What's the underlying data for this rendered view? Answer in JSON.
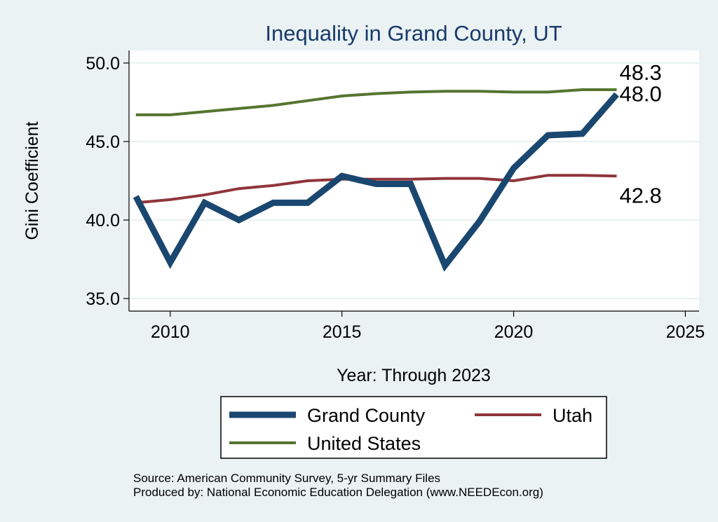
{
  "chart_data": {
    "type": "line",
    "title": "Inequality in Grand County, UT",
    "xlabel": "Year: Through 2023",
    "ylabel": "Gini Coefficient",
    "xlim": [
      2008.8,
      2025.4
    ],
    "ylim": [
      34.2,
      50.8
    ],
    "xticks": [
      "2010",
      "2015",
      "2020",
      "2025"
    ],
    "yticks": [
      "35.0",
      "40.0",
      "45.0",
      "50.0"
    ],
    "grid": true,
    "x": [
      2009,
      2010,
      2011,
      2012,
      2013,
      2014,
      2015,
      2016,
      2017,
      2018,
      2019,
      2020,
      2021,
      2022,
      2023
    ],
    "series": [
      {
        "name": "Grand County",
        "color": "#1a476f",
        "values": [
          41.5,
          37.3,
          41.1,
          40.0,
          41.1,
          41.1,
          42.8,
          42.3,
          42.3,
          37.1,
          39.9,
          43.3,
          45.4,
          45.5,
          48.0
        ],
        "end_label": "48.0"
      },
      {
        "name": "Utah",
        "color": "#90353b",
        "values": [
          41.1,
          41.3,
          41.6,
          42.0,
          42.2,
          42.5,
          42.6,
          42.6,
          42.6,
          42.65,
          42.65,
          42.5,
          42.85,
          42.85,
          42.8
        ],
        "end_label": "42.8"
      },
      {
        "name": "United States",
        "color": "#55752f",
        "values": [
          46.7,
          46.7,
          46.9,
          47.1,
          47.3,
          47.6,
          47.9,
          48.05,
          48.15,
          48.2,
          48.2,
          48.15,
          48.15,
          48.3,
          48.3
        ],
        "end_label": "48.3"
      }
    ],
    "legend_position": "bottom",
    "source_lines": [
      "Source: American Community Survey, 5-yr Summary Files",
      "Produced by: National Economic Education Delegation (www.NEEDEcon.org)"
    ]
  }
}
